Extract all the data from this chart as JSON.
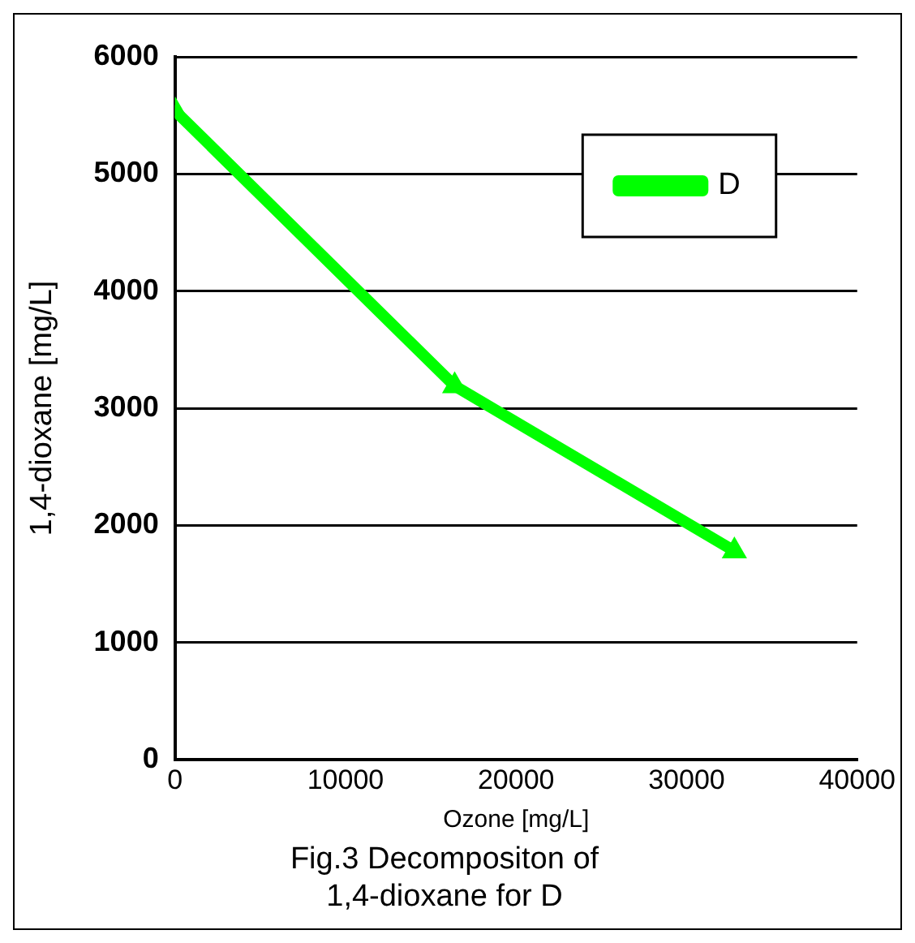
{
  "chart_data": {
    "type": "line",
    "title": "Fig.3 Decompositon of\n1,4-dioxane for D",
    "xlabel": "Ozone [mg/L]",
    "ylabel": "1,4-dioxane [mg/L]",
    "x": [
      0,
      16400,
      32800
    ],
    "series": [
      {
        "name": "D",
        "color": "#00ff00",
        "values": [
          5540,
          3190,
          1780
        ]
      }
    ],
    "xlim": [
      0,
      40000
    ],
    "xticks": [
      0,
      10000,
      20000,
      30000,
      40000
    ],
    "ylim": [
      0,
      6000
    ],
    "yticks": [
      0,
      1000,
      2000,
      3000,
      4000,
      5000,
      6000
    ],
    "grid": "y",
    "legend": "top right",
    "marker": "triangle",
    "line_style": "solid"
  }
}
